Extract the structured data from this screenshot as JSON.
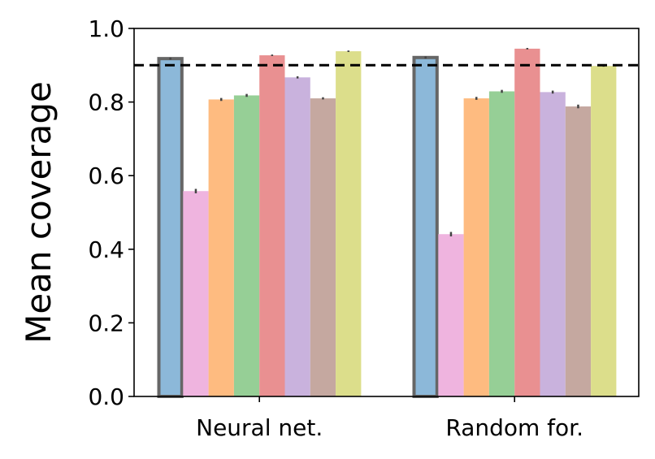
{
  "chart_data": {
    "type": "bar",
    "ylabel": "Mean coverage",
    "xlabel": "",
    "ylim": [
      0,
      1.0
    ],
    "yticks": [
      "0.0",
      "0.2",
      "0.4",
      "0.6",
      "0.8",
      "1.0"
    ],
    "categories": [
      "Neural net.",
      "Random for."
    ],
    "reference_line": {
      "y": 0.9,
      "style": "dashed",
      "color": "#000000"
    },
    "grid": false,
    "legend": "none",
    "series": [
      {
        "color": "#8cb8d9",
        "highlighted": true,
        "values": [
          0.918,
          0.921
        ],
        "errors": [
          0.003,
          0.003
        ]
      },
      {
        "color": "#efb4df",
        "values": [
          0.558,
          0.441
        ],
        "errors": [
          0.006,
          0.006
        ]
      },
      {
        "color": "#febb80",
        "values": [
          0.807,
          0.81
        ],
        "errors": [
          0.004,
          0.004
        ]
      },
      {
        "color": "#96cf96",
        "values": [
          0.818,
          0.829
        ],
        "errors": [
          0.004,
          0.004
        ]
      },
      {
        "color": "#e99091",
        "values": [
          0.927,
          0.945
        ],
        "errors": [
          0.002,
          0.002
        ]
      },
      {
        "color": "#c9b2dd",
        "values": [
          0.867,
          0.827
        ],
        "errors": [
          0.003,
          0.004
        ]
      },
      {
        "color": "#c5a8a0",
        "values": [
          0.81,
          0.788
        ],
        "errors": [
          0.003,
          0.005
        ]
      },
      {
        "color": "#dcde8b",
        "values": [
          0.938,
          0.898
        ],
        "errors": [
          0.002,
          0.002
        ]
      }
    ]
  }
}
